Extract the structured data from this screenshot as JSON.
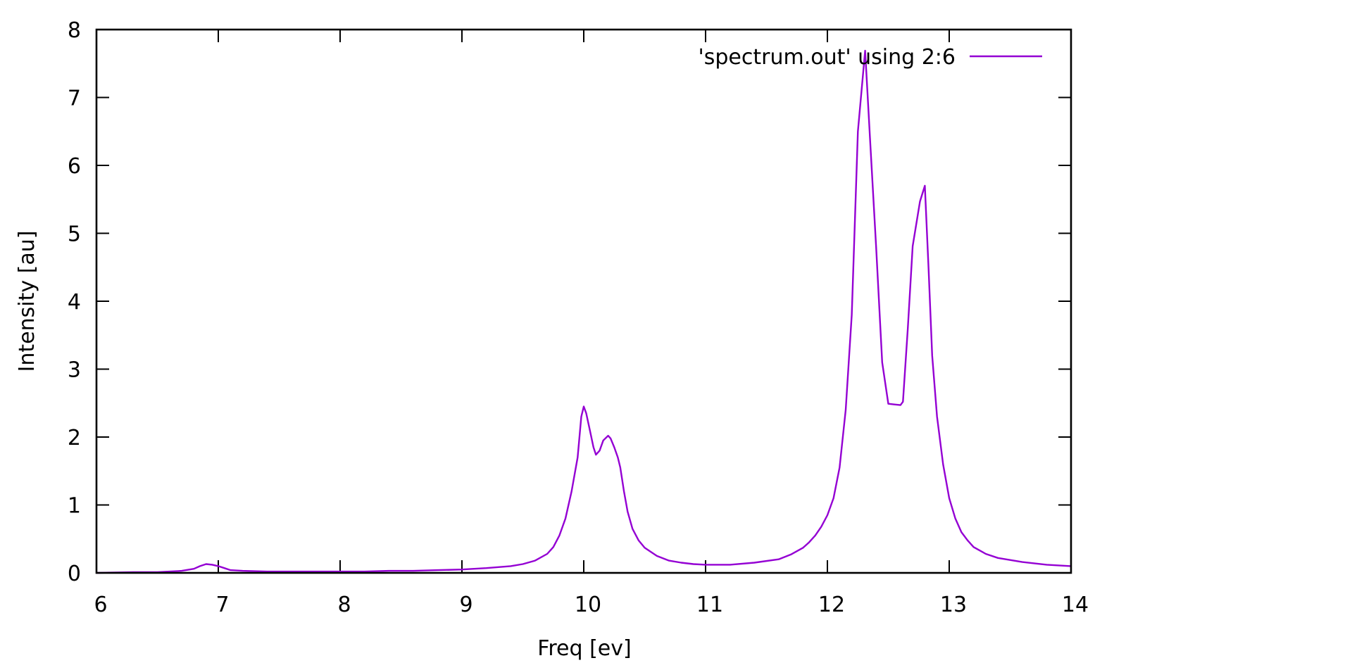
{
  "chart_data": {
    "type": "line",
    "title": "",
    "xlabel": "Freq [ev]",
    "ylabel": "Intensity [au]",
    "xlim": [
      6,
      14
    ],
    "ylim": [
      0,
      8
    ],
    "xticks": [
      "6",
      "7",
      "8",
      "9",
      "10",
      "11",
      "12",
      "13",
      "14"
    ],
    "yticks": [
      "0",
      "1",
      "2",
      "3",
      "4",
      "5",
      "6",
      "7",
      "8"
    ],
    "grid": false,
    "legend_position": "top-right inside",
    "series": [
      {
        "name": "'spectrum.out' using 2:6",
        "color": "#9400d3",
        "x": [
          6.0,
          6.3,
          6.5,
          6.6,
          6.7,
          6.8,
          6.85,
          6.9,
          6.95,
          7.0,
          7.05,
          7.1,
          7.2,
          7.4,
          7.6,
          7.8,
          8.0,
          8.2,
          8.4,
          8.6,
          8.8,
          9.0,
          9.2,
          9.4,
          9.5,
          9.6,
          9.7,
          9.75,
          9.8,
          9.85,
          9.9,
          9.95,
          9.98,
          10.0,
          10.02,
          10.05,
          10.08,
          10.1,
          10.13,
          10.16,
          10.2,
          10.22,
          10.25,
          10.28,
          10.3,
          10.33,
          10.36,
          10.4,
          10.45,
          10.5,
          10.6,
          10.7,
          10.8,
          10.9,
          11.0,
          11.2,
          11.4,
          11.6,
          11.7,
          11.8,
          11.85,
          11.9,
          11.95,
          12.0,
          12.05,
          12.1,
          12.15,
          12.2,
          12.25,
          12.31,
          12.35,
          12.4,
          12.45,
          12.5,
          12.55,
          12.6,
          12.62,
          12.66,
          12.7,
          12.76,
          12.8,
          12.83,
          12.86,
          12.9,
          12.95,
          13.0,
          13.05,
          13.1,
          13.15,
          13.2,
          13.3,
          13.4,
          13.6,
          13.8,
          14.0
        ],
        "y": [
          0.0,
          0.01,
          0.01,
          0.02,
          0.03,
          0.06,
          0.1,
          0.13,
          0.12,
          0.1,
          0.07,
          0.04,
          0.03,
          0.02,
          0.02,
          0.02,
          0.02,
          0.02,
          0.03,
          0.03,
          0.04,
          0.05,
          0.07,
          0.1,
          0.13,
          0.18,
          0.28,
          0.38,
          0.55,
          0.8,
          1.2,
          1.7,
          2.3,
          2.45,
          2.35,
          2.1,
          1.85,
          1.74,
          1.8,
          1.95,
          2.02,
          1.98,
          1.85,
          1.7,
          1.55,
          1.2,
          0.9,
          0.65,
          0.48,
          0.37,
          0.25,
          0.18,
          0.15,
          0.13,
          0.12,
          0.12,
          0.15,
          0.2,
          0.27,
          0.37,
          0.45,
          0.55,
          0.68,
          0.85,
          1.1,
          1.55,
          2.4,
          3.8,
          6.5,
          7.69,
          6.4,
          4.8,
          3.1,
          2.49,
          2.48,
          2.47,
          2.52,
          3.6,
          4.81,
          5.47,
          5.7,
          4.5,
          3.2,
          2.3,
          1.6,
          1.1,
          0.8,
          0.6,
          0.48,
          0.38,
          0.28,
          0.22,
          0.16,
          0.12,
          0.1
        ]
      }
    ]
  },
  "legend": {
    "label": "'spectrum.out' using 2:6"
  },
  "axes": {
    "xlabel": "Freq [ev]",
    "ylabel": "Intensity [au]"
  }
}
